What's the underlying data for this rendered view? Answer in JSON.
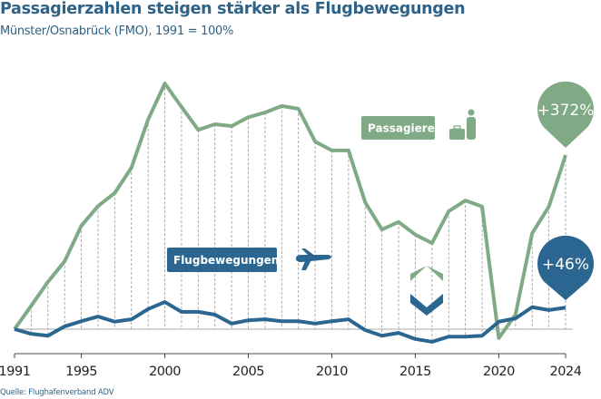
{
  "title": "Passagierzahlen steigen stärker als Flugbewegungen",
  "subtitle": "Münster/Osnabrück (FMO), 1991 = 100%",
  "source": "Quelle: Flughafenverband ADV",
  "chart_data": {
    "type": "line",
    "title": "Passagierzahlen steigen stärker als Flugbewegungen",
    "subtitle": "Münster/Osnabrück (FMO), 1991 = 100%",
    "x": [
      1991,
      1992,
      1993,
      1994,
      1995,
      1996,
      1997,
      1998,
      1999,
      2000,
      2001,
      2002,
      2003,
      2004,
      2005,
      2006,
      2007,
      2008,
      2009,
      2010,
      2011,
      2012,
      2013,
      2014,
      2015,
      2016,
      2017,
      2018,
      2019,
      2020,
      2021,
      2022,
      2023,
      2024
    ],
    "xticks": [
      "1991",
      "1995",
      "2000",
      "2005",
      "2010",
      "2015",
      "2020",
      "2024"
    ],
    "baseline": 100,
    "grid": false,
    "series": [
      {
        "name": "Passagiere",
        "color": "#7faa85",
        "end_label": "+372%",
        "values": [
          100,
          150,
          201,
          245,
          321,
          363,
          391,
          445,
          548,
          625,
          575,
          526,
          538,
          534,
          553,
          563,
          577,
          571,
          501,
          482,
          482,
          371,
          313,
          329,
          302,
          284,
          352,
          375,
          362,
          81,
          131,
          305,
          362,
          472
        ]
      },
      {
        "name": "Flugbewegungen",
        "color": "#2b6690",
        "end_label": "+46%",
        "values": [
          100,
          90,
          86,
          106,
          117,
          127,
          116,
          121,
          143,
          158,
          137,
          137,
          131,
          112,
          119,
          121,
          117,
          117,
          112,
          117,
          121,
          98,
          86,
          92,
          79,
          73,
          84,
          84,
          86,
          116,
          123,
          147,
          141,
          146
        ]
      }
    ],
    "icons": {
      "passagiere": "person-with-suitcase-icon",
      "flugbewegungen": "airplane-icon",
      "comparison": "chevron-up-down-icon"
    }
  }
}
